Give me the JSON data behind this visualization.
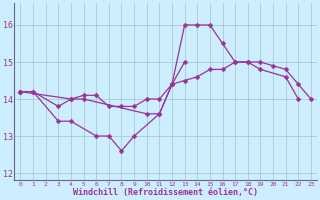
{
  "xlabel": "Windchill (Refroidissement éolien,°C)",
  "bg_color": "#cceeff",
  "grid_color": "#aacccc",
  "line_color": "#993399",
  "x": [
    0,
    1,
    2,
    3,
    4,
    5,
    6,
    7,
    8,
    9,
    10,
    11,
    12,
    13,
    14,
    15,
    16,
    17,
    18,
    19,
    20,
    21,
    22,
    23
  ],
  "line1_x": [
    0,
    1,
    3,
    4,
    5,
    10,
    11,
    12,
    13,
    14,
    15,
    16,
    17,
    18,
    19,
    21,
    22
  ],
  "line1_y": [
    14.2,
    14.2,
    13.8,
    14.0,
    14.0,
    13.6,
    13.6,
    14.4,
    16.0,
    16.0,
    16.0,
    15.5,
    15.0,
    15.0,
    14.8,
    14.6,
    14.0
  ],
  "line2_x": [
    0,
    1,
    3,
    4,
    6,
    7,
    8,
    9,
    11,
    12,
    13
  ],
  "line2_y": [
    14.2,
    14.2,
    13.4,
    13.4,
    13.0,
    13.0,
    12.6,
    13.0,
    13.6,
    14.4,
    15.0
  ],
  "line3_x": [
    0,
    4,
    5,
    6,
    7,
    8,
    9,
    10,
    11,
    12,
    13,
    14,
    15,
    16,
    17,
    18,
    19,
    20,
    21,
    22,
    23
  ],
  "line3_y": [
    14.2,
    14.0,
    14.1,
    14.1,
    13.8,
    13.8,
    13.8,
    14.0,
    14.0,
    14.4,
    14.5,
    14.6,
    14.8,
    14.8,
    15.0,
    15.0,
    15.0,
    14.9,
    14.8,
    14.4,
    14.0
  ],
  "ylim": [
    11.8,
    16.6
  ],
  "yticks": [
    12,
    13,
    14,
    15,
    16
  ],
  "xlim": [
    -0.5,
    23.5
  ],
  "xticks": [
    0,
    1,
    2,
    3,
    4,
    5,
    6,
    7,
    8,
    9,
    10,
    11,
    12,
    13,
    14,
    15,
    16,
    17,
    18,
    19,
    20,
    21,
    22,
    23
  ]
}
